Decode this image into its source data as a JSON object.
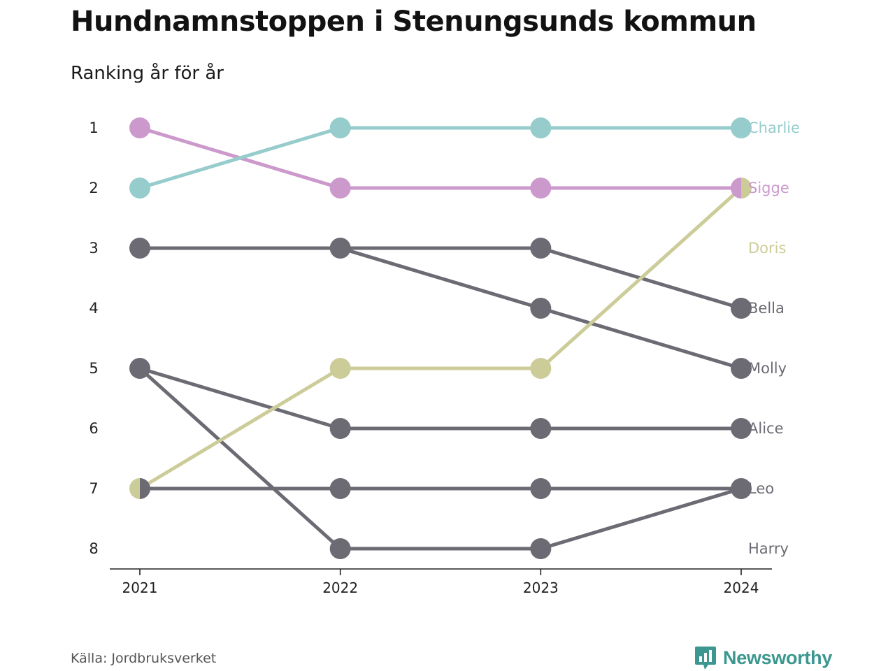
{
  "title": "Hundnamnstoppen i Stenungsunds kommun",
  "subtitle": "Ranking år för år",
  "source": "Källa: Jordbruksverket",
  "brand": {
    "name": "Newsworthy",
    "icon": "newsworthy-logo-icon",
    "color": "#3b978f"
  },
  "chart_data": {
    "type": "line",
    "x": [
      "2021",
      "2022",
      "2023",
      "2024"
    ],
    "y_ticks": [
      1,
      2,
      3,
      4,
      5,
      6,
      7,
      8
    ],
    "y_reversed": true,
    "grid": false,
    "legend": "direct labels at right",
    "series": [
      {
        "name": "Charlie",
        "color": "#96cccc",
        "values": [
          2,
          1,
          1,
          1
        ]
      },
      {
        "name": "Sigge",
        "color": "#cc99cc",
        "values": [
          1,
          2,
          2,
          2
        ]
      },
      {
        "name": "Doris",
        "color": "#cccc99",
        "values": [
          7,
          5,
          5,
          2
        ]
      },
      {
        "name": "Bella",
        "color": "#6c6b74",
        "values": [
          3,
          3,
          3,
          4
        ]
      },
      {
        "name": "Molly",
        "color": "#6c6b74",
        "values": [
          3,
          3,
          4,
          5
        ]
      },
      {
        "name": "Alice",
        "color": "#6c6b74",
        "values": [
          5,
          6,
          6,
          6
        ]
      },
      {
        "name": "Leo",
        "color": "#6c6b74",
        "values": [
          7,
          7,
          7,
          7
        ]
      },
      {
        "name": "Harry",
        "color": "#6c6b74",
        "values": [
          5,
          8,
          8,
          7
        ]
      }
    ],
    "end_labels": [
      {
        "text": "Charlie",
        "rank": 1,
        "color": "#96cccc"
      },
      {
        "text": "Sigge",
        "rank": 2,
        "color": "#cc99cc"
      },
      {
        "text": "Doris",
        "rank": 3,
        "color": "#cccc99"
      },
      {
        "text": "Bella",
        "rank": 4,
        "color": "#6c6b74"
      },
      {
        "text": "Molly",
        "rank": 5,
        "color": "#6c6b74"
      },
      {
        "text": "Alice",
        "rank": 6,
        "color": "#6c6b74"
      },
      {
        "text": "Leo",
        "rank": 7,
        "color": "#6c6b74"
      },
      {
        "text": "Harry",
        "rank": 8,
        "color": "#6c6b74"
      }
    ]
  }
}
